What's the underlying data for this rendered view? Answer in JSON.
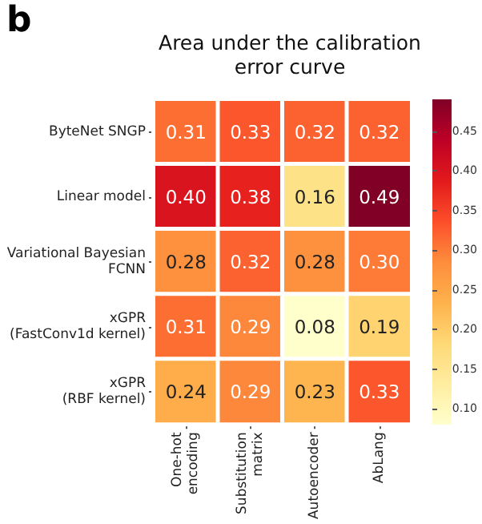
{
  "chart_data": {
    "type": "heatmap",
    "title": "Area under the calibration\nerror curve",
    "annotations": [
      "b"
    ],
    "categories": [
      "One-hot\nencoding",
      "Substitution\nmatrix",
      "Autoencoder",
      "AbLang"
    ],
    "y_categories": [
      "ByteNet SNGP",
      "Linear model",
      "Variational Bayesian\nFCNN",
      "xGPR\n(FastConv1d kernel)",
      "xGPR\n(RBF kernel)"
    ],
    "cells": [
      [
        0.31,
        0.33,
        0.32,
        0.32
      ],
      [
        0.4,
        0.38,
        0.16,
        0.49
      ],
      [
        0.28,
        0.32,
        0.28,
        0.3
      ],
      [
        0.31,
        0.29,
        0.08,
        0.19
      ],
      [
        0.24,
        0.29,
        0.23,
        0.33
      ]
    ],
    "cell_labels": [
      [
        "0.31",
        "0.33",
        "0.32",
        "0.32"
      ],
      [
        "0.40",
        "0.38",
        "0.16",
        "0.49"
      ],
      [
        "0.28",
        "0.32",
        "0.28",
        "0.30"
      ],
      [
        "0.31",
        "0.29",
        "0.08",
        "0.19"
      ],
      [
        "0.24",
        "0.29",
        "0.23",
        "0.33"
      ]
    ],
    "clim": [
      0.08,
      0.49
    ],
    "cticks": [
      {
        "value": 0.1,
        "label": "0.10"
      },
      0.15,
      {
        "value": 0.2,
        "label": "0.20"
      },
      0.25,
      {
        "value": 0.3,
        "label": "0.30"
      },
      0.35,
      {
        "value": 0.4,
        "label": "0.40"
      },
      0.45
    ]
  }
}
